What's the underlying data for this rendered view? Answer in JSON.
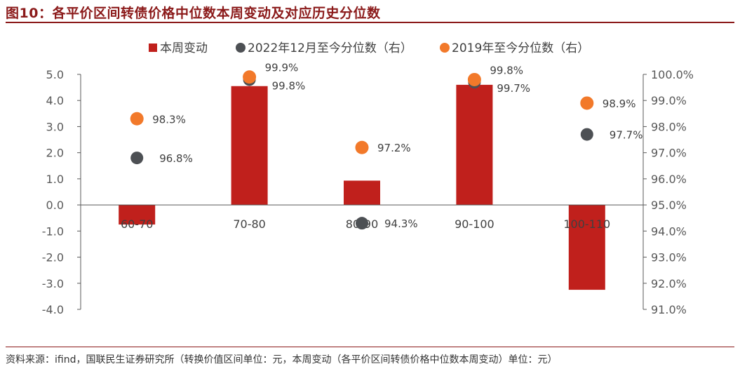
{
  "figure_title": "图10：各平价区间转债价格中位数本周变动及对应历史分位数",
  "source_note": "资料来源：ifind，国联民生证券研究所（转换价值区间单位：元，本周变动（各平价区间转债价格中位数本周变动）单位：元）",
  "colors": {
    "bar": "#c0201c",
    "dot_2022": "#4d5054",
    "dot_2019": "#f2792a",
    "title": "#8b1a1a"
  },
  "chart_data": {
    "type": "bar",
    "categories": [
      "60-70",
      "70-80",
      "80-90",
      "90-100",
      "100-110"
    ],
    "series": [
      {
        "name": "本周变动",
        "type": "bar",
        "axis": "left",
        "values": [
          -0.75,
          4.55,
          0.93,
          4.6,
          -3.25
        ]
      },
      {
        "name": "2022年12月至今分位数（右）",
        "type": "scatter",
        "axis": "right",
        "values": [
          96.8,
          99.8,
          94.3,
          99.7,
          97.7
        ],
        "labels": [
          "96.8%",
          "99.8%",
          "94.3%",
          "99.7%",
          "97.7%"
        ]
      },
      {
        "name": "2019年至今分位数（右）",
        "type": "scatter",
        "axis": "right",
        "values": [
          98.3,
          99.9,
          97.2,
          99.8,
          98.9
        ],
        "labels": [
          "98.3%",
          "99.9%",
          "97.2%",
          "99.8%",
          "98.9%"
        ]
      }
    ],
    "left_axis": {
      "range": [
        -4.0,
        5.0
      ],
      "ticks": [
        5.0,
        4.0,
        3.0,
        2.0,
        1.0,
        0.0,
        -1.0,
        -2.0,
        -3.0,
        -4.0
      ],
      "tick_labels": [
        "5.0",
        "4.0",
        "3.0",
        "2.0",
        "1.0",
        "0.0",
        "-1.0",
        "-2.0",
        "-3.0",
        "-4.0"
      ]
    },
    "right_axis": {
      "range": [
        91.0,
        100.0
      ],
      "ticks": [
        100.0,
        99.0,
        98.0,
        97.0,
        96.0,
        95.0,
        94.0,
        93.0,
        92.0,
        91.0
      ],
      "tick_labels": [
        "100.0%",
        "99.0%",
        "98.0%",
        "97.0%",
        "96.0%",
        "95.0%",
        "94.0%",
        "93.0%",
        "92.0%",
        "91.0%"
      ]
    },
    "legend_position": "top",
    "grid": false
  }
}
